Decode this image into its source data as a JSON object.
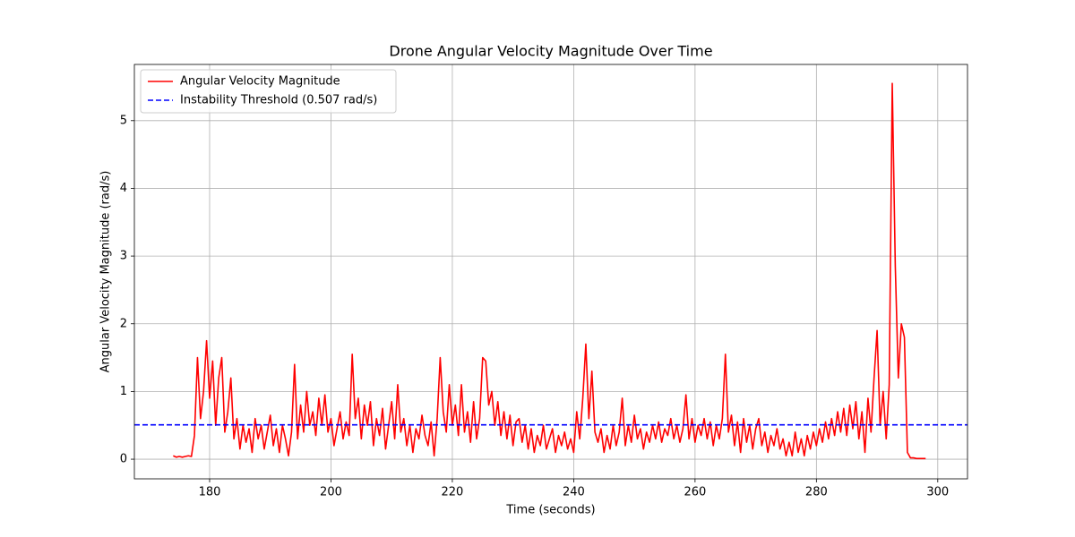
{
  "chart_data": {
    "type": "line",
    "title": "Drone Angular Velocity Magnitude Over Time",
    "xlabel": "Time (seconds)",
    "ylabel": "Angular Velocity Magnitude (rad/s)",
    "x": [
      174,
      174.5,
      175,
      175.5,
      176,
      176.5,
      177,
      177.5,
      178,
      178.5,
      179,
      179.5,
      180,
      180.5,
      181,
      181.5,
      182,
      182.5,
      183,
      183.5,
      184,
      184.5,
      185,
      185.5,
      186,
      186.5,
      187,
      187.5,
      188,
      188.5,
      189,
      189.5,
      190,
      190.5,
      191,
      191.5,
      192,
      192.5,
      193,
      193.5,
      194,
      194.5,
      195,
      195.5,
      196,
      196.5,
      197,
      197.5,
      198,
      198.5,
      199,
      199.5,
      200,
      200.5,
      201,
      201.5,
      202,
      202.5,
      203,
      203.5,
      204,
      204.5,
      205,
      205.5,
      206,
      206.5,
      207,
      207.5,
      208,
      208.5,
      209,
      209.5,
      210,
      210.5,
      211,
      211.5,
      212,
      212.5,
      213,
      213.5,
      214,
      214.5,
      215,
      215.5,
      216,
      216.5,
      217,
      217.5,
      218,
      218.5,
      219,
      219.5,
      220,
      220.5,
      221,
      221.5,
      222,
      222.5,
      223,
      223.5,
      224,
      224.5,
      225,
      225.5,
      226,
      226.5,
      227,
      227.5,
      228,
      228.5,
      229,
      229.5,
      230,
      230.5,
      231,
      231.5,
      232,
      232.5,
      233,
      233.5,
      234,
      234.5,
      235,
      235.5,
      236,
      236.5,
      237,
      237.5,
      238,
      238.5,
      239,
      239.5,
      240,
      240.5,
      241,
      241.5,
      242,
      242.5,
      243,
      243.5,
      244,
      244.5,
      245,
      245.5,
      246,
      246.5,
      247,
      247.5,
      248,
      248.5,
      249,
      249.5,
      250,
      250.5,
      251,
      251.5,
      252,
      252.5,
      253,
      253.5,
      254,
      254.5,
      255,
      255.5,
      256,
      256.5,
      257,
      257.5,
      258,
      258.5,
      259,
      259.5,
      260,
      260.5,
      261,
      261.5,
      262,
      262.5,
      263,
      263.5,
      264,
      264.5,
      265,
      265.5,
      266,
      266.5,
      267,
      267.5,
      268,
      268.5,
      269,
      269.5,
      270,
      270.5,
      271,
      271.5,
      272,
      272.5,
      273,
      273.5,
      274,
      274.5,
      275,
      275.5,
      276,
      276.5,
      277,
      277.5,
      278,
      278.5,
      279,
      279.5,
      280,
      280.5,
      281,
      281.5,
      282,
      282.5,
      283,
      283.5,
      284,
      284.5,
      285,
      285.5,
      286,
      286.5,
      287,
      287.5,
      288,
      288.5,
      289,
      289.5,
      290,
      290.5,
      291,
      291.5,
      292,
      292.5,
      293,
      293.5,
      294,
      294.5,
      295,
      295.5,
      296,
      296.5,
      297,
      297.5,
      298
    ],
    "series": [
      {
        "name": "Angular Velocity Magnitude",
        "color": "#ff0000",
        "values": [
          0.05,
          0.03,
          0.04,
          0.03,
          0.04,
          0.05,
          0.04,
          0.35,
          1.5,
          0.6,
          1.0,
          1.75,
          0.9,
          1.45,
          0.5,
          1.2,
          1.5,
          0.4,
          0.7,
          1.2,
          0.3,
          0.6,
          0.15,
          0.5,
          0.25,
          0.45,
          0.1,
          0.6,
          0.3,
          0.5,
          0.15,
          0.4,
          0.65,
          0.2,
          0.45,
          0.1,
          0.5,
          0.3,
          0.05,
          0.4,
          1.4,
          0.3,
          0.8,
          0.4,
          1.0,
          0.5,
          0.7,
          0.35,
          0.9,
          0.5,
          0.95,
          0.4,
          0.6,
          0.2,
          0.45,
          0.7,
          0.3,
          0.55,
          0.35,
          1.55,
          0.6,
          0.9,
          0.3,
          0.8,
          0.5,
          0.85,
          0.2,
          0.6,
          0.35,
          0.75,
          0.15,
          0.5,
          0.85,
          0.3,
          1.1,
          0.4,
          0.6,
          0.2,
          0.5,
          0.1,
          0.45,
          0.3,
          0.65,
          0.35,
          0.2,
          0.55,
          0.05,
          0.6,
          1.5,
          0.7,
          0.4,
          1.1,
          0.5,
          0.8,
          0.35,
          1.1,
          0.4,
          0.7,
          0.25,
          0.85,
          0.3,
          0.6,
          1.5,
          1.45,
          0.8,
          1.0,
          0.5,
          0.85,
          0.35,
          0.7,
          0.3,
          0.65,
          0.2,
          0.55,
          0.6,
          0.25,
          0.5,
          0.15,
          0.45,
          0.1,
          0.35,
          0.2,
          0.5,
          0.15,
          0.3,
          0.45,
          0.1,
          0.35,
          0.2,
          0.4,
          0.15,
          0.3,
          0.1,
          0.7,
          0.3,
          0.9,
          1.7,
          0.6,
          1.3,
          0.4,
          0.25,
          0.45,
          0.1,
          0.35,
          0.15,
          0.5,
          0.2,
          0.4,
          0.9,
          0.2,
          0.5,
          0.25,
          0.65,
          0.3,
          0.45,
          0.15,
          0.4,
          0.25,
          0.5,
          0.3,
          0.55,
          0.25,
          0.45,
          0.35,
          0.6,
          0.3,
          0.5,
          0.25,
          0.45,
          0.95,
          0.3,
          0.6,
          0.25,
          0.5,
          0.35,
          0.6,
          0.3,
          0.55,
          0.2,
          0.5,
          0.3,
          0.6,
          1.55,
          0.4,
          0.65,
          0.2,
          0.55,
          0.1,
          0.6,
          0.25,
          0.5,
          0.15,
          0.45,
          0.6,
          0.2,
          0.4,
          0.1,
          0.35,
          0.2,
          0.45,
          0.15,
          0.3,
          0.05,
          0.25,
          0.05,
          0.4,
          0.1,
          0.3,
          0.05,
          0.35,
          0.15,
          0.4,
          0.2,
          0.45,
          0.25,
          0.55,
          0.3,
          0.6,
          0.35,
          0.7,
          0.4,
          0.75,
          0.35,
          0.8,
          0.45,
          0.85,
          0.3,
          0.7,
          0.1,
          0.9,
          0.4,
          1.2,
          1.9,
          0.5,
          1.0,
          0.3,
          1.1,
          5.55,
          2.85,
          1.2,
          2.0,
          1.8,
          0.1,
          0.02,
          0.02,
          0.01,
          0.01,
          0.01,
          0.01
        ]
      }
    ],
    "hlines": [
      {
        "name": "Instability Threshold (0.507 rad/s)",
        "value": 0.507,
        "color": "#0000ff",
        "style": "dashed"
      }
    ],
    "xlim": [
      167.6,
      304.9
    ],
    "xticks": [
      180,
      200,
      220,
      240,
      260,
      280,
      300
    ],
    "ylim": [
      -0.29,
      5.83
    ],
    "yticks": [
      0,
      1,
      2,
      3,
      4,
      5
    ],
    "grid": true,
    "legend": "upper left"
  }
}
